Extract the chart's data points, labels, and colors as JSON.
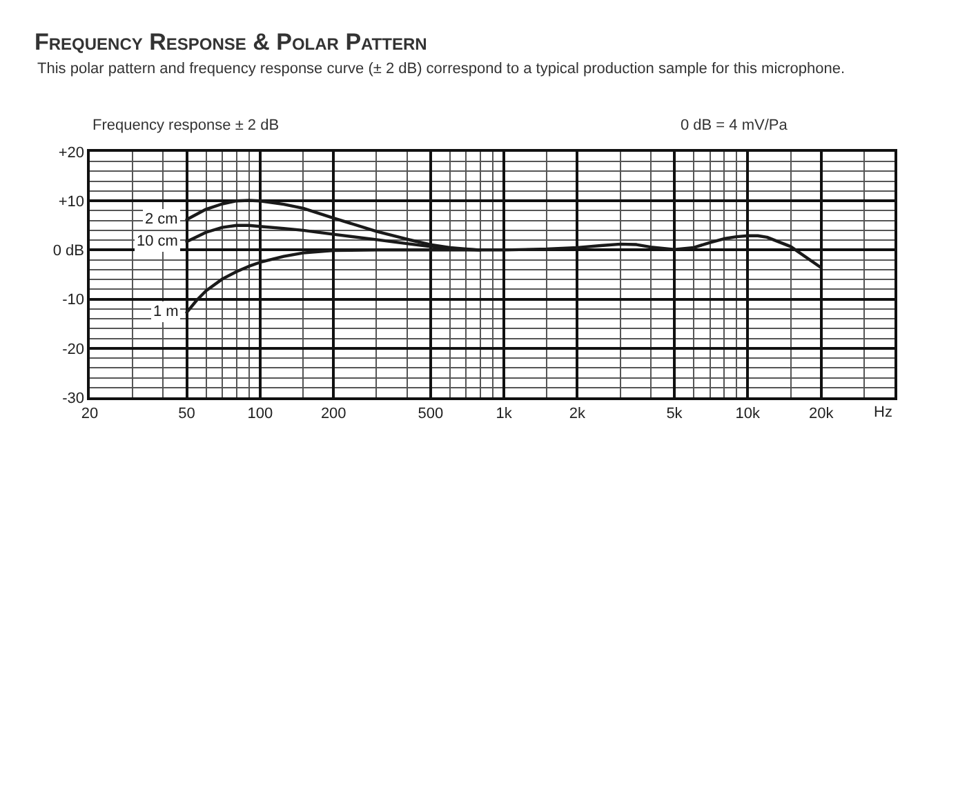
{
  "chart_data": {
    "type": "line",
    "title": "Frequency Response & Polar Pattern",
    "subtitle": "This polar pattern and frequency response curve (± 2 dB) correspond to a typical production sample for this microphone.",
    "annotations": [
      "Frequency response ± 2 dB",
      "0 dB = 4 mV/Pa"
    ],
    "xlabel": "Hz",
    "log": "x",
    "grid": true,
    "xlim": [
      20,
      40000
    ],
    "xticks": [
      20,
      {
        "value": 30,
        "label": null
      },
      {
        "value": 40,
        "label": null
      },
      50,
      {
        "value": 60,
        "label": null
      },
      {
        "value": 70,
        "label": null
      },
      {
        "value": 80,
        "label": null
      },
      {
        "value": 90,
        "label": null
      },
      100,
      {
        "value": 150,
        "label": null
      },
      200,
      {
        "value": 300,
        "label": null
      },
      {
        "value": 400,
        "label": null
      },
      500,
      {
        "value": 600,
        "label": null
      },
      {
        "value": 700,
        "label": null
      },
      {
        "value": 800,
        "label": null
      },
      {
        "value": 900,
        "label": null
      },
      {
        "value": 1000,
        "label": "1k"
      },
      {
        "value": 1500,
        "label": null
      },
      {
        "value": 2000,
        "label": "2k"
      },
      {
        "value": 3000,
        "label": null
      },
      {
        "value": 4000,
        "label": null
      },
      {
        "value": 5000,
        "label": "5k"
      },
      {
        "value": 6000,
        "label": null
      },
      {
        "value": 7000,
        "label": null
      },
      {
        "value": 8000,
        "label": null
      },
      {
        "value": 9000,
        "label": null
      },
      {
        "value": 10000,
        "label": "10k"
      },
      {
        "value": 15000,
        "label": null
      },
      {
        "value": 20000,
        "label": "20k"
      },
      {
        "value": 30000,
        "label": null
      }
    ],
    "ylim": [
      -30,
      20
    ],
    "yticks": [
      {
        "value": 20,
        "label": "+20"
      },
      {
        "value": 18,
        "label": null
      },
      {
        "value": 16,
        "label": null
      },
      {
        "value": 14,
        "label": null
      },
      {
        "value": 12,
        "label": null
      },
      {
        "value": 10,
        "label": "+10"
      },
      {
        "value": 8,
        "label": null
      },
      {
        "value": 6,
        "label": null
      },
      {
        "value": 4,
        "label": null
      },
      {
        "value": 2,
        "label": null
      },
      {
        "value": 0,
        "label": "0 dB"
      },
      {
        "value": -2,
        "label": null
      },
      {
        "value": -4,
        "label": null
      },
      {
        "value": -6,
        "label": null
      },
      {
        "value": -8,
        "label": null
      },
      -10,
      {
        "value": -12,
        "label": null
      },
      {
        "value": -14,
        "label": null
      },
      {
        "value": -16,
        "label": null
      },
      {
        "value": -18,
        "label": null
      },
      -20,
      {
        "value": -22,
        "label": null
      },
      {
        "value": -24,
        "label": null
      },
      {
        "value": -26,
        "label": null
      },
      {
        "value": -28,
        "label": null
      },
      -30
    ],
    "series": [
      {
        "name": "2 cm",
        "color": "#1a1a1a",
        "x": [
          50,
          60,
          70,
          80,
          90,
          100,
          125,
          150,
          200,
          300,
          400,
          500,
          600,
          700,
          800
        ],
        "values": [
          6.2,
          8.3,
          9.4,
          10.0,
          10.1,
          10.0,
          9.3,
          8.5,
          6.5,
          3.8,
          2.2,
          1.1,
          0.5,
          0.2,
          0
        ]
      },
      {
        "name": "10 cm",
        "color": "#1a1a1a",
        "x": [
          50,
          60,
          70,
          80,
          90,
          100,
          125,
          150,
          200,
          300,
          400,
          500,
          600,
          700,
          800
        ],
        "values": [
          1.7,
          3.6,
          4.6,
          5.0,
          5.0,
          4.8,
          4.4,
          4.0,
          3.2,
          2.1,
          1.3,
          0.7,
          0.3,
          0.1,
          0
        ]
      },
      {
        "name": "1 m",
        "color": "#1a1a1a",
        "x": [
          50,
          55,
          60,
          70,
          80,
          90,
          100,
          125,
          150,
          200,
          300,
          500,
          700,
          1000,
          1500,
          2000,
          2500,
          3000,
          3500,
          4000,
          5000,
          6000,
          7000,
          8000,
          9000,
          10000,
          11000,
          12000,
          15000,
          20000
        ],
        "values": [
          -12.7,
          -10.2,
          -8.3,
          -5.9,
          -4.4,
          -3.3,
          -2.5,
          -1.3,
          -0.6,
          -0.1,
          0,
          0,
          0,
          0,
          0.2,
          0.5,
          0.9,
          1.2,
          1.1,
          0.6,
          0.1,
          0.5,
          1.5,
          2.3,
          2.7,
          2.9,
          2.9,
          2.6,
          0.7,
          -3.6
        ]
      }
    ]
  }
}
